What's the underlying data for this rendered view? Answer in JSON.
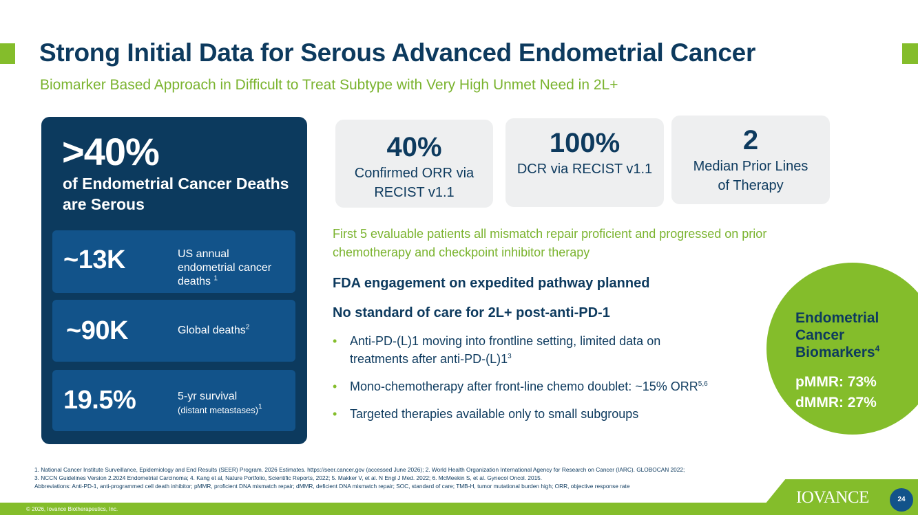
{
  "header": {
    "title": "Strong Initial Data for Serous Advanced Endometrial Cancer",
    "subtitle": "Biomarker Based Approach in Difficult to Treat Subtype with Very High Unmet Need in 2L+"
  },
  "left_panel": {
    "headline_value": ">40%",
    "headline_text": "of Endometrial Cancer Deaths are Serous",
    "stats": [
      {
        "value": "~13K",
        "label": "US annual endometrial cancer deaths",
        "sup": "1"
      },
      {
        "value": "~90K",
        "label": "Global deaths",
        "sup": "2"
      },
      {
        "value": "19.5%",
        "label_main": "5-yr survival",
        "label_sub": "(distant metastases)",
        "sup": "1"
      }
    ]
  },
  "metric_cards": [
    {
      "value": "40%",
      "label": "Confirmed ORR via RECIST v1.1"
    },
    {
      "value": "100%",
      "label": "DCR via RECIST v1.1"
    },
    {
      "value": "2",
      "label": "Median Prior Lines of Therapy"
    }
  ],
  "note": "First 5 evaluable patients all mismatch repair proficient and progressed on prior chemotherapy and checkpoint inhibitor therapy",
  "heading_fda": "FDA engagement on expedited pathway planned",
  "heading_soc": "No standard of care for 2L+ post-anti-PD-1",
  "bullets": [
    {
      "text": "Anti-PD-(L)1 moving into frontline setting, limited data on treatments after anti-PD-(L)1",
      "sup": "3"
    },
    {
      "text": "Mono-chemotherapy after front-line chemo doublet: ~15% ORR",
      "sup": "5,6"
    },
    {
      "text": "Targeted therapies available only to small subgroups",
      "sup": ""
    }
  ],
  "biomarkers": {
    "title": "Endometrial Cancer Biomarkers",
    "sup": "4",
    "pmmr": "pMMR: 73%",
    "dmmr": "dMMR: 27%"
  },
  "footnotes": {
    "line1": "1.  National Cancer Institute Surveillance, Epidemiology and End Results (SEER) Program. 2026 Estimates. https://seer.cancer.gov (accessed June 2026); 2. World Health Organization International Agency for Research on Cancer (IARC). GLOBOCAN 2022;",
    "line2": "3. NCCN Guidelines Version 2.2024 Endometrial Carcinoma; 4. Kang et al, Nature Portfolio, Scientific Reports, 2022; 5. Makker V, et al. N Engl J Med. 2022; 6. McMeekin S, et al. Gynecol Oncol. 2015.",
    "line3": "Abbreviations:  Anti-PD-1, anti-programmed cell death inhibitor; pMMR, proficient DNA mismatch repair; dMMR, deficient DNA mismatch repair; SOC, standard of care;  TMB-H, tumor mutational burden high; ORR, objective response rate"
  },
  "footer": {
    "copyright": "© 2026, Iovance Biotherapeutics, Inc.",
    "logo": "IOVANCE",
    "page_number": "24"
  },
  "colors": {
    "navy": "#0c3a5e",
    "blue": "#12538a",
    "green": "#84bd2b",
    "card": "#eeeff0"
  }
}
